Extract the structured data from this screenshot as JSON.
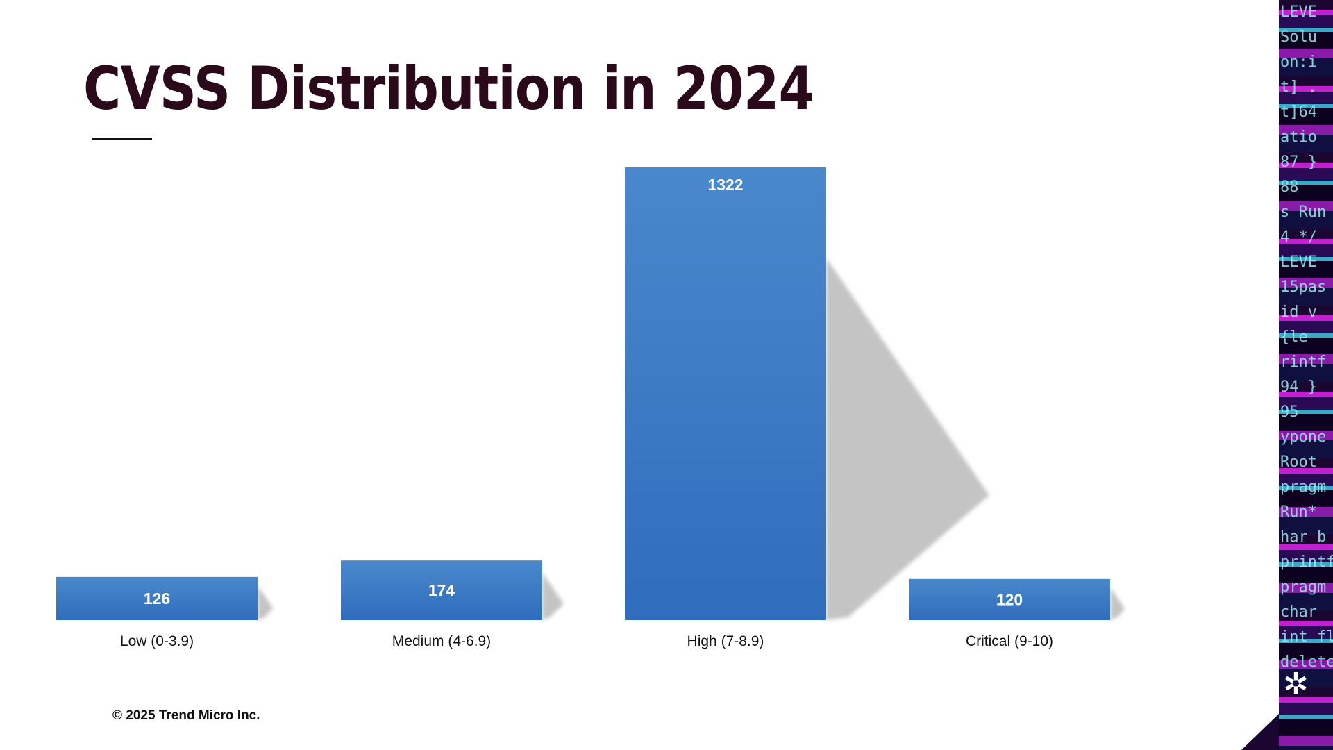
{
  "chart_data": {
    "type": "bar",
    "title": "CVSS Distribution in 2024",
    "categories": [
      "Low (0-3.9)",
      "Medium (4-6.9)",
      "High (7-8.9)",
      "Critical (9-10)"
    ],
    "values": [
      126,
      174,
      1322,
      120
    ],
    "xlabel": "",
    "ylabel": "",
    "ylim": [
      0,
      1322
    ],
    "grid": false,
    "legend": "none",
    "colors": {
      "bar_top": "#4a88cc",
      "bar_bottom": "#2f6dbd",
      "shadow": "#c4c4c4"
    }
  },
  "footer": {
    "copyright": "© 2025 Trend Micro Inc."
  },
  "decor": {
    "code_lines": [
      "LEVE",
      "Solu",
      "on:i",
      "t] .",
      "t]64",
      "atio",
      "87 }",
      "88",
      "s Run",
      "4 */",
      "LEVE",
      "15pas",
      "id v",
      "{le",
      "rintf",
      "94 }",
      "95",
      "ypone",
      "Root",
      "pragm",
      "Run*",
      "har b",
      "printf",
      "pragm",
      "char",
      "int fl",
      "delete"
    ]
  }
}
